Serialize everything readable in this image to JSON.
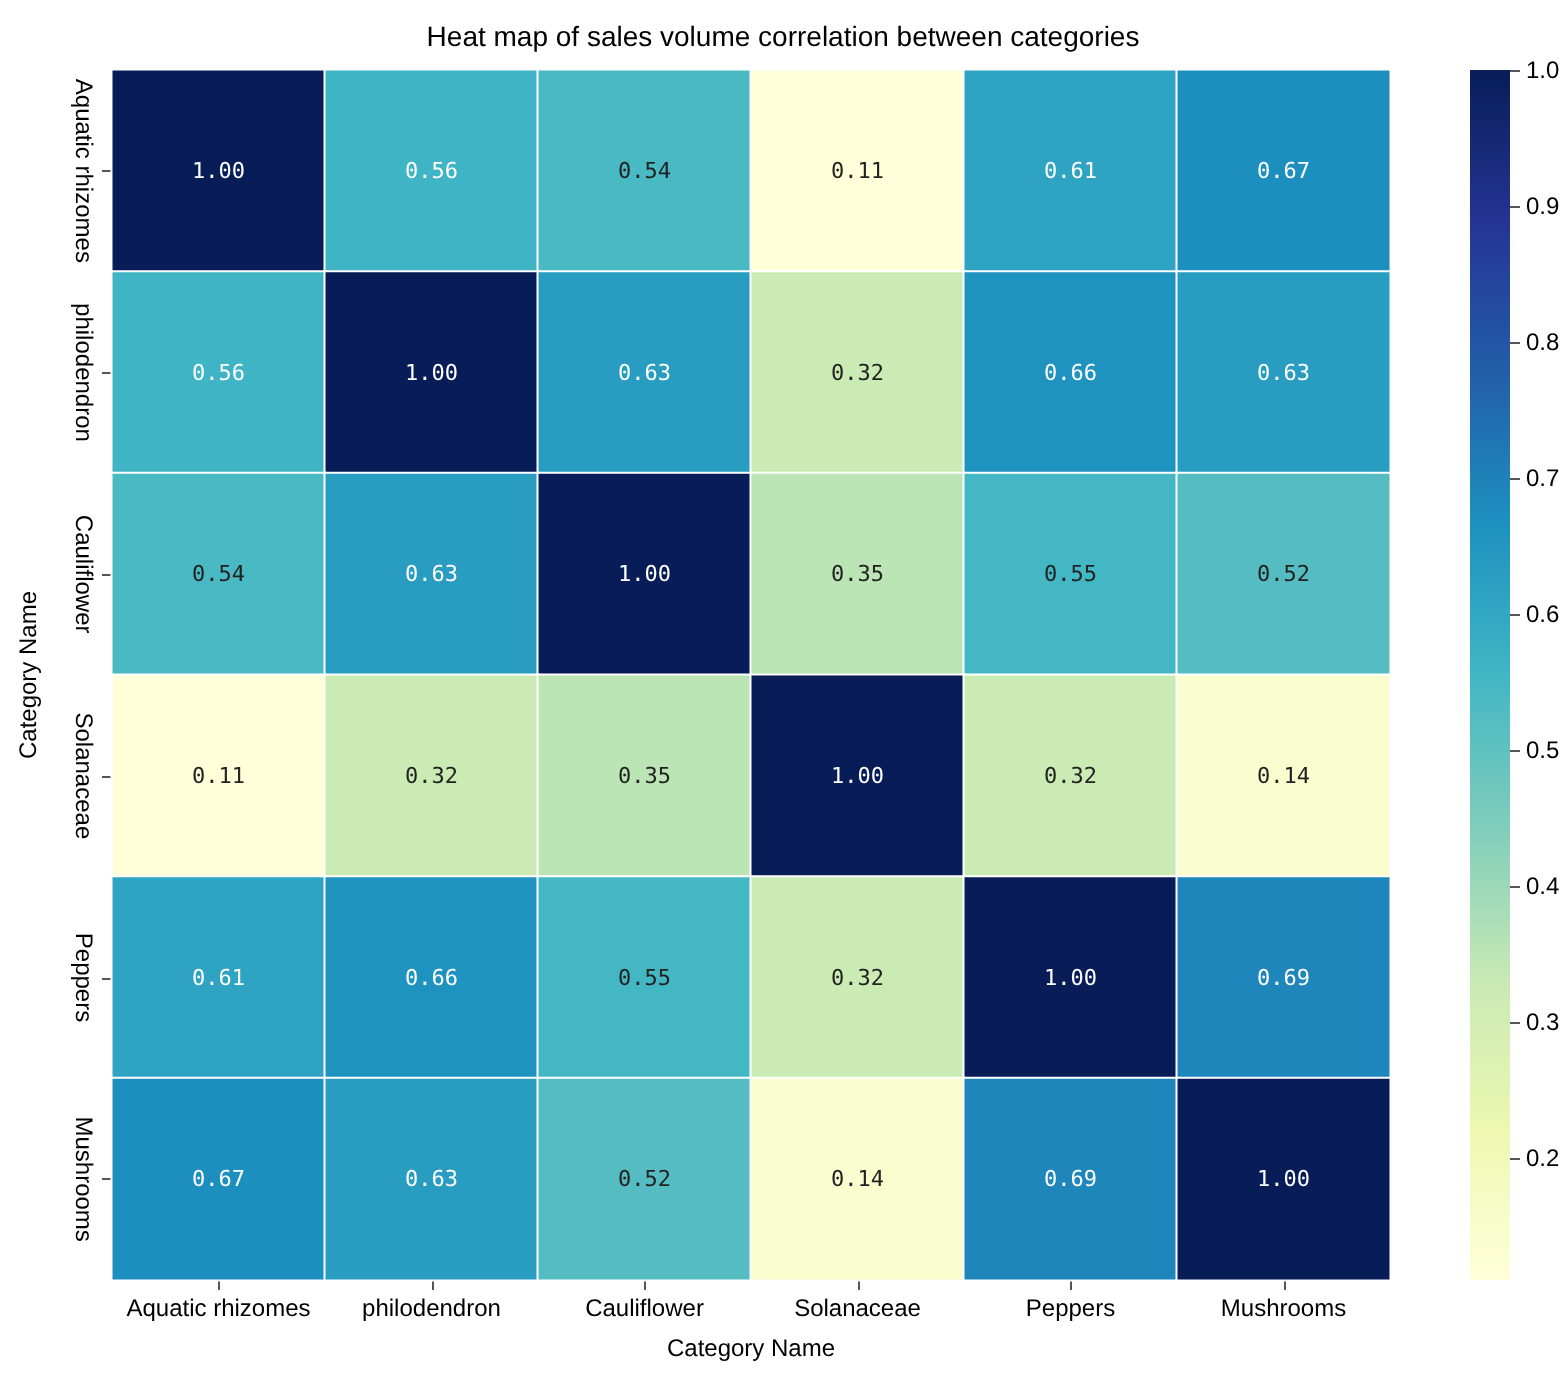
{
  "chart_data": {
    "type": "heatmap",
    "title": "Heat map of sales volume correlation between categories",
    "xlabel": "Category Name",
    "ylabel": "Category Name",
    "categories": [
      "Aquatic rhizomes",
      "philodendron",
      "Cauliflower",
      "Solanaceae",
      "Peppers",
      "Mushrooms"
    ],
    "y_categories": [
      "Aquatic rhizomes",
      "philodendron",
      "Cauliflower",
      "Solanaceae",
      "Peppers",
      "Mushrooms"
    ],
    "cells": [
      [
        1.0,
        0.56,
        0.54,
        0.11,
        0.61,
        0.67
      ],
      [
        0.56,
        1.0,
        0.63,
        0.32,
        0.66,
        0.63
      ],
      [
        0.54,
        0.63,
        1.0,
        0.35,
        0.55,
        0.52
      ],
      [
        0.11,
        0.32,
        0.35,
        1.0,
        0.32,
        0.14
      ],
      [
        0.61,
        0.66,
        0.55,
        0.32,
        1.0,
        0.69
      ],
      [
        0.67,
        0.63,
        0.52,
        0.14,
        0.69,
        1.0
      ]
    ],
    "cell_labels": [
      [
        "1.00",
        "0.56",
        "0.54",
        "0.11",
        "0.61",
        "0.67"
      ],
      [
        "0.56",
        "1.00",
        "0.63",
        "0.32",
        "0.66",
        "0.63"
      ],
      [
        "0.54",
        "0.63",
        "1.00",
        "0.35",
        "0.55",
        "0.52"
      ],
      [
        "0.11",
        "0.32",
        "0.35",
        "1.00",
        "0.32",
        "0.14"
      ],
      [
        "0.61",
        "0.66",
        "0.55",
        "0.32",
        "1.00",
        "0.69"
      ],
      [
        "0.67",
        "0.63",
        "0.52",
        "0.14",
        "0.69",
        "1.00"
      ]
    ],
    "data_labels": true,
    "clim": [
      0.11,
      1.0
    ],
    "cticks": [
      0.2,
      0.3,
      0.4,
      0.5,
      0.6,
      0.7,
      0.8,
      0.9,
      {
        "value": 1,
        "label": "1.0"
      }
    ]
  }
}
